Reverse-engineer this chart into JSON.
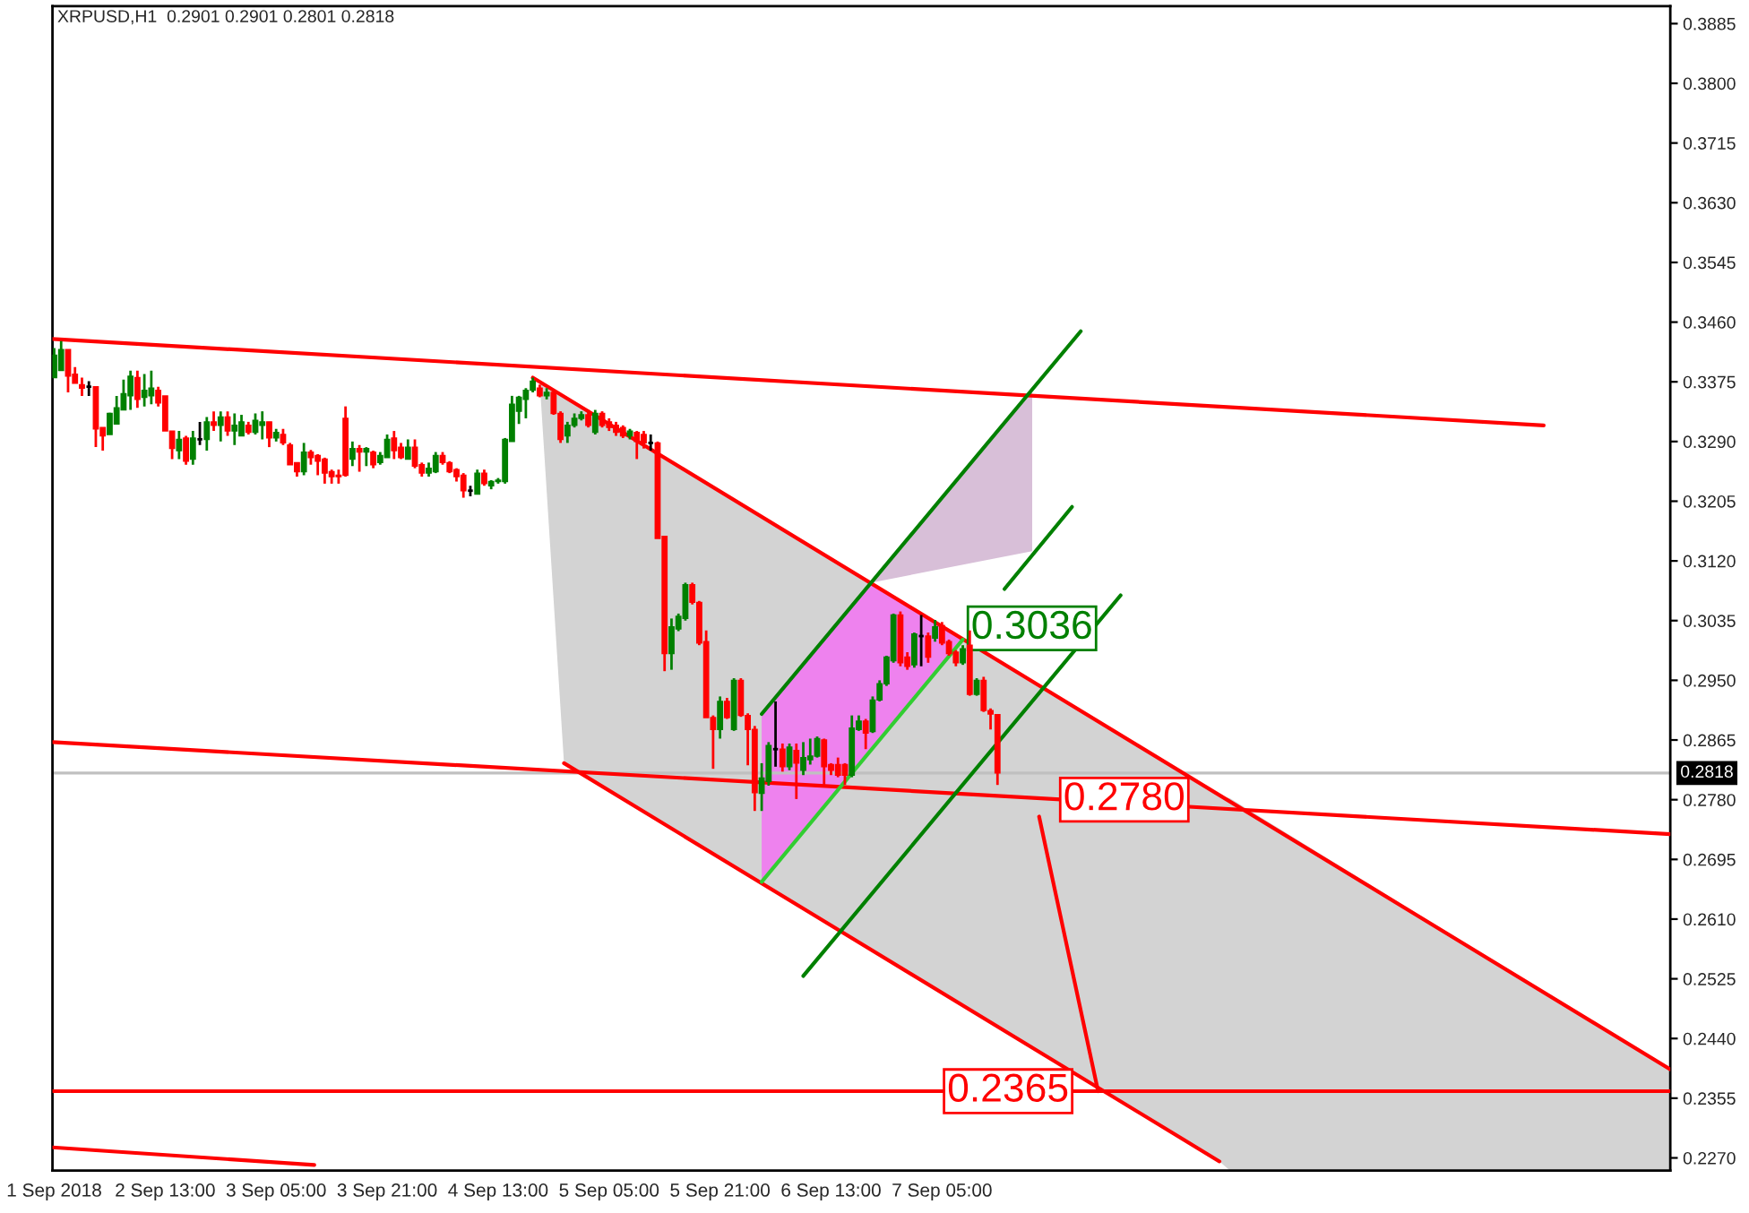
{
  "chart_data": {
    "type": "candlestick",
    "title": "XRPUSD,H1  0.2901 0.2901 0.2801 0.2818",
    "xlim": [
      "2018-09-01T20:45",
      "2018-09-11T14:00"
    ],
    "ylim": [
      0.2252,
      0.391
    ],
    "xticks": [
      {
        "value": "2018-09-01T21:00",
        "label": "1 Sep 2018"
      },
      {
        "value": "2018-09-02T13:00",
        "label": "2 Sep 13:00"
      },
      {
        "value": "2018-09-03T05:00",
        "label": "3 Sep 05:00"
      },
      {
        "value": "2018-09-03T21:00",
        "label": "3 Sep 21:00"
      },
      {
        "value": "2018-09-04T13:00",
        "label": "4 Sep 13:00"
      },
      {
        "value": "2018-09-05T05:00",
        "label": "5 Sep 05:00"
      },
      {
        "value": "2018-09-05T21:00",
        "label": "5 Sep 21:00"
      },
      {
        "value": "2018-09-06T13:00",
        "label": "6 Sep 13:00"
      },
      {
        "value": "2018-09-07T05:00",
        "label": "7 Sep 05:00"
      }
    ],
    "yticks": [
      {
        "value": 0.227,
        "label": "0.2270"
      },
      {
        "value": 0.2355,
        "label": "0.2355"
      },
      {
        "value": 0.244,
        "label": "0.2440"
      },
      {
        "value": 0.2525,
        "label": "0.2525"
      },
      {
        "value": 0.261,
        "label": "0.2610"
      },
      {
        "value": 0.2695,
        "label": "0.2695"
      },
      {
        "value": 0.278,
        "label": "0.2780"
      },
      {
        "value": 0.2865,
        "label": "0.2865"
      },
      {
        "value": 0.295,
        "label": "0.2950"
      },
      {
        "value": 0.3035,
        "label": "0.3035"
      },
      {
        "value": 0.312,
        "label": "0.3120"
      },
      {
        "value": 0.3205,
        "label": "0.3205"
      },
      {
        "value": 0.329,
        "label": "0.3290"
      },
      {
        "value": 0.3375,
        "label": "0.3375"
      },
      {
        "value": 0.346,
        "label": "0.3460"
      },
      {
        "value": 0.3545,
        "label": "0.3545"
      },
      {
        "value": 0.363,
        "label": "0.3630"
      },
      {
        "value": 0.3715,
        "label": "0.3715"
      },
      {
        "value": 0.38,
        "label": "0.3800"
      },
      {
        "value": 0.3885,
        "label": "0.3885"
      }
    ],
    "grid": false,
    "colors": [
      "#008000",
      "#008000",
      "#ff0000",
      "#ff0000",
      "#ff0000",
      "#000000",
      "#ff0000",
      "#ff0000",
      "#008000",
      "#008000",
      "#008000",
      "#008000",
      "#ff0000",
      "#008000",
      "#008000",
      "#ff0000",
      "#ff0000",
      "#ff0000",
      "#008000",
      "#ff0000",
      "#008000",
      "#000000",
      "#008000",
      "#ff0000",
      "#008000",
      "#ff0000",
      "#008000",
      "#008000",
      "#ff0000",
      "#008000",
      "#008000",
      "#ff0000",
      "#008000",
      "#ff0000",
      "#ff0000",
      "#ff0000",
      "#008000",
      "#ff0000",
      "#ff0000",
      "#ff0000",
      "#ff0000",
      "#ff0000",
      "#ff0000",
      "#008000",
      "#ff0000",
      "#008000",
      "#ff0000",
      "#008000",
      "#008000",
      "#ff0000",
      "#ff0000",
      "#008000",
      "#ff0000",
      "#ff0000",
      "#008000",
      "#008000",
      "#ff0000",
      "#ff0000",
      "#ff0000",
      "#ff0000",
      "#000000",
      "#008000",
      "#ff0000",
      "#008000",
      "#008000",
      "#008000",
      "#008000",
      "#008000",
      "#008000",
      "#008000",
      "#ff0000",
      "#008000",
      "#ff0000",
      "#ff0000",
      "#008000",
      "#008000",
      "#008000",
      "#ff0000",
      "#008000",
      "#ff0000",
      "#ff0000",
      "#ff0000",
      "#ff0000",
      "#008000",
      "#ff0000",
      "#ff0000",
      "#000000",
      "#ff0000",
      "#ff0000",
      "#008000",
      "#008000",
      "#008000",
      "#ff0000",
      "#ff0000",
      "#ff0000",
      "#ff0000",
      "#008000",
      "#ff0000",
      "#008000",
      "#ff0000",
      "#ff0000",
      "#ff0000",
      "#008000",
      "#008000",
      "#000000",
      "#ff0000",
      "#008000",
      "#ff0000",
      "#008000",
      "#008000",
      "#008000",
      "#ff0000",
      "#ff0000",
      "#ff0000",
      "#ff0000",
      "#008000",
      "#008000",
      "#ff0000",
      "#008000",
      "#008000",
      "#008000",
      "#008000",
      "#ff0000",
      "#ff0000",
      "#008000",
      "#000000",
      "#ff0000",
      "#008000",
      "#ff0000",
      "#ff0000",
      "#ff0000",
      "#008000",
      "#ff0000",
      "#008000",
      "#ff0000",
      "#ff0000",
      "#ff0000"
    ],
    "x": [
      "2018-09-01T21:00",
      "2018-09-01T22:00",
      "2018-09-01T23:00",
      "2018-09-02T00:00",
      "2018-09-02T01:00",
      "2018-09-02T02:00",
      "2018-09-02T03:00",
      "2018-09-02T04:00",
      "2018-09-02T05:00",
      "2018-09-02T06:00",
      "2018-09-02T07:00",
      "2018-09-02T08:00",
      "2018-09-02T09:00",
      "2018-09-02T10:00",
      "2018-09-02T11:00",
      "2018-09-02T12:00",
      "2018-09-02T13:00",
      "2018-09-02T14:00",
      "2018-09-02T15:00",
      "2018-09-02T16:00",
      "2018-09-02T17:00",
      "2018-09-02T18:00",
      "2018-09-02T19:00",
      "2018-09-02T20:00",
      "2018-09-02T21:00",
      "2018-09-02T22:00",
      "2018-09-02T23:00",
      "2018-09-03T00:00",
      "2018-09-03T01:00",
      "2018-09-03T02:00",
      "2018-09-03T03:00",
      "2018-09-03T04:00",
      "2018-09-03T05:00",
      "2018-09-03T06:00",
      "2018-09-03T07:00",
      "2018-09-03T08:00",
      "2018-09-03T09:00",
      "2018-09-03T10:00",
      "2018-09-03T11:00",
      "2018-09-03T12:00",
      "2018-09-03T13:00",
      "2018-09-03T14:00",
      "2018-09-03T15:00",
      "2018-09-03T16:00",
      "2018-09-03T17:00",
      "2018-09-03T18:00",
      "2018-09-03T19:00",
      "2018-09-03T20:00",
      "2018-09-03T21:00",
      "2018-09-03T22:00",
      "2018-09-03T23:00",
      "2018-09-04T00:00",
      "2018-09-04T01:00",
      "2018-09-04T02:00",
      "2018-09-04T03:00",
      "2018-09-04T04:00",
      "2018-09-04T05:00",
      "2018-09-04T06:00",
      "2018-09-04T07:00",
      "2018-09-04T08:00",
      "2018-09-04T09:00",
      "2018-09-04T10:00",
      "2018-09-04T11:00",
      "2018-09-04T12:00",
      "2018-09-04T13:00",
      "2018-09-04T14:00",
      "2018-09-04T15:00",
      "2018-09-04T16:00",
      "2018-09-04T17:00",
      "2018-09-04T18:00",
      "2018-09-04T19:00",
      "2018-09-04T20:00",
      "2018-09-04T21:00",
      "2018-09-04T22:00",
      "2018-09-04T23:00",
      "2018-09-05T00:00",
      "2018-09-05T01:00",
      "2018-09-05T02:00",
      "2018-09-05T03:00",
      "2018-09-05T04:00",
      "2018-09-05T05:00",
      "2018-09-05T06:00",
      "2018-09-05T07:00",
      "2018-09-05T08:00",
      "2018-09-05T09:00",
      "2018-09-05T10:00",
      "2018-09-05T11:00",
      "2018-09-05T12:00",
      "2018-09-05T13:00",
      "2018-09-05T14:00",
      "2018-09-05T15:00",
      "2018-09-05T16:00",
      "2018-09-05T17:00",
      "2018-09-05T18:00",
      "2018-09-05T19:00",
      "2018-09-05T20:00",
      "2018-09-05T21:00",
      "2018-09-05T22:00",
      "2018-09-05T23:00",
      "2018-09-06T00:00",
      "2018-09-06T01:00",
      "2018-09-06T02:00",
      "2018-09-06T03:00",
      "2018-09-06T04:00",
      "2018-09-06T05:00",
      "2018-09-06T06:00",
      "2018-09-06T07:00",
      "2018-09-06T08:00",
      "2018-09-06T09:00",
      "2018-09-06T10:00",
      "2018-09-06T11:00",
      "2018-09-06T12:00",
      "2018-09-06T13:00",
      "2018-09-06T14:00",
      "2018-09-06T15:00",
      "2018-09-06T16:00",
      "2018-09-06T17:00",
      "2018-09-06T18:00",
      "2018-09-06T19:00",
      "2018-09-06T20:00",
      "2018-09-06T21:00",
      "2018-09-06T22:00",
      "2018-09-06T23:00",
      "2018-09-07T00:00",
      "2018-09-07T01:00",
      "2018-09-07T02:00",
      "2018-09-07T03:00",
      "2018-09-07T04:00",
      "2018-09-07T05:00",
      "2018-09-07T06:00",
      "2018-09-07T07:00",
      "2018-09-07T08:00",
      "2018-09-07T09:00",
      "2018-09-07T10:00",
      "2018-09-07T11:00",
      "2018-09-07T12:00",
      "2018-09-07T13:00"
    ],
    "ohlc": [
      [
        0.3381,
        0.3423,
        0.3381,
        0.3413
      ],
      [
        0.3391,
        0.3433,
        0.3391,
        0.3421
      ],
      [
        0.3421,
        0.3421,
        0.336,
        0.3383
      ],
      [
        0.3386,
        0.3396,
        0.3373,
        0.3373
      ],
      [
        0.3371,
        0.3381,
        0.3355,
        0.3366
      ],
      [
        0.3368,
        0.3376,
        0.3355,
        0.3368
      ],
      [
        0.3368,
        0.3368,
        0.3282,
        0.3308
      ],
      [
        0.331,
        0.331,
        0.3277,
        0.3298
      ],
      [
        0.33,
        0.3331,
        0.33,
        0.333
      ],
      [
        0.3315,
        0.3355,
        0.3315,
        0.3338
      ],
      [
        0.3335,
        0.3378,
        0.3335,
        0.3358
      ],
      [
        0.3355,
        0.3391,
        0.3335,
        0.3383
      ],
      [
        0.3381,
        0.3391,
        0.3338,
        0.335
      ],
      [
        0.3353,
        0.3386,
        0.334,
        0.3363
      ],
      [
        0.3355,
        0.3391,
        0.3343,
        0.3366
      ],
      [
        0.3363,
        0.3368,
        0.334,
        0.3345
      ],
      [
        0.3355,
        0.3355,
        0.3305,
        0.3305
      ],
      [
        0.3305,
        0.3305,
        0.3265,
        0.328
      ],
      [
        0.3277,
        0.3305,
        0.3265,
        0.3293
      ],
      [
        0.3295,
        0.3298,
        0.3257,
        0.3262
      ],
      [
        0.3265,
        0.3305,
        0.3257,
        0.3295
      ],
      [
        0.3293,
        0.3318,
        0.3285,
        0.3293
      ],
      [
        0.3293,
        0.3325,
        0.3277,
        0.3318
      ],
      [
        0.3318,
        0.3333,
        0.3305,
        0.3313
      ],
      [
        0.3313,
        0.3333,
        0.329,
        0.3325
      ],
      [
        0.3325,
        0.3333,
        0.3298,
        0.3305
      ],
      [
        0.3305,
        0.333,
        0.3285,
        0.3313
      ],
      [
        0.3298,
        0.3328,
        0.3298,
        0.3318
      ],
      [
        0.3313,
        0.3318,
        0.33,
        0.3303
      ],
      [
        0.3303,
        0.333,
        0.33,
        0.332
      ],
      [
        0.3313,
        0.3333,
        0.3293,
        0.3318
      ],
      [
        0.3318,
        0.3318,
        0.3282,
        0.3295
      ],
      [
        0.3295,
        0.3308,
        0.329,
        0.3303
      ],
      [
        0.33,
        0.3308,
        0.3285,
        0.3288
      ],
      [
        0.3285,
        0.3288,
        0.3257,
        0.3257
      ],
      [
        0.326,
        0.326,
        0.324,
        0.3247
      ],
      [
        0.3247,
        0.3288,
        0.3242,
        0.3275
      ],
      [
        0.3275,
        0.3278,
        0.3257,
        0.3267
      ],
      [
        0.327,
        0.3272,
        0.3242,
        0.3262
      ],
      [
        0.3265,
        0.3267,
        0.323,
        0.3245
      ],
      [
        0.3247,
        0.325,
        0.323,
        0.324
      ],
      [
        0.3242,
        0.325,
        0.323,
        0.324
      ],
      [
        0.3323,
        0.334,
        0.324,
        0.3242
      ],
      [
        0.3265,
        0.329,
        0.3255,
        0.328
      ],
      [
        0.328,
        0.3285,
        0.3247,
        0.3275
      ],
      [
        0.3275,
        0.3282,
        0.3255,
        0.328
      ],
      [
        0.3275,
        0.3277,
        0.3252,
        0.3257
      ],
      [
        0.326,
        0.3275,
        0.3257,
        0.327
      ],
      [
        0.3267,
        0.33,
        0.3267,
        0.3293
      ],
      [
        0.3295,
        0.3305,
        0.3265,
        0.3277
      ],
      [
        0.3282,
        0.3288,
        0.3265,
        0.3267
      ],
      [
        0.3265,
        0.3293,
        0.3265,
        0.3282
      ],
      [
        0.3282,
        0.3293,
        0.3252,
        0.3255
      ],
      [
        0.3257,
        0.326,
        0.324,
        0.3245
      ],
      [
        0.3245,
        0.326,
        0.324,
        0.3252
      ],
      [
        0.3247,
        0.3275,
        0.3245,
        0.327
      ],
      [
        0.327,
        0.3275,
        0.3257,
        0.326
      ],
      [
        0.326,
        0.3262,
        0.3245,
        0.3247
      ],
      [
        0.325,
        0.3252,
        0.3233,
        0.324
      ],
      [
        0.3242,
        0.3245,
        0.321,
        0.322
      ],
      [
        0.322,
        0.3227,
        0.3212,
        0.322
      ],
      [
        0.3215,
        0.325,
        0.3215,
        0.3245
      ],
      [
        0.3245,
        0.325,
        0.3227,
        0.323
      ],
      [
        0.3227,
        0.3235,
        0.3222,
        0.3233
      ],
      [
        0.3233,
        0.3238,
        0.323,
        0.3235
      ],
      [
        0.3233,
        0.3295,
        0.323,
        0.3293
      ],
      [
        0.329,
        0.3355,
        0.329,
        0.3343
      ],
      [
        0.3333,
        0.3355,
        0.3315,
        0.3353
      ],
      [
        0.335,
        0.3366,
        0.3323,
        0.3363
      ],
      [
        0.3363,
        0.3381,
        0.336,
        0.3376
      ],
      [
        0.3366,
        0.3371,
        0.3353,
        0.3355
      ],
      [
        0.3355,
        0.3366,
        0.335,
        0.336
      ],
      [
        0.336,
        0.3363,
        0.3328,
        0.333
      ],
      [
        0.333,
        0.3333,
        0.3288,
        0.3293
      ],
      [
        0.3298,
        0.3318,
        0.3288,
        0.3313
      ],
      [
        0.3313,
        0.333,
        0.331,
        0.3323
      ],
      [
        0.3323,
        0.3333,
        0.332,
        0.3328
      ],
      [
        0.3328,
        0.3335,
        0.331,
        0.3313
      ],
      [
        0.3303,
        0.3335,
        0.33,
        0.333
      ],
      [
        0.333,
        0.3333,
        0.331,
        0.3313
      ],
      [
        0.3318,
        0.3323,
        0.3305,
        0.331
      ],
      [
        0.3313,
        0.3318,
        0.3298,
        0.3303
      ],
      [
        0.331,
        0.3313,
        0.3295,
        0.3298
      ],
      [
        0.3298,
        0.3308,
        0.3293,
        0.3305
      ],
      [
        0.3303,
        0.3305,
        0.3265,
        0.329
      ],
      [
        0.33,
        0.3305,
        0.328,
        0.3288
      ],
      [
        0.3288,
        0.33,
        0.3277,
        0.3288
      ],
      [
        0.3288,
        0.329,
        0.3152,
        0.3152
      ],
      [
        0.3155,
        0.3155,
        0.2963,
        0.2988
      ],
      [
        0.2988,
        0.3038,
        0.2965,
        0.3026
      ],
      [
        0.3023,
        0.3045,
        0.302,
        0.3041
      ],
      [
        0.3038,
        0.3089,
        0.3035,
        0.3086
      ],
      [
        0.3086,
        0.3089,
        0.3058,
        0.3061
      ],
      [
        0.3061,
        0.3063,
        0.3,
        0.3003
      ],
      [
        0.3005,
        0.3021,
        0.2897,
        0.2897
      ],
      [
        0.2897,
        0.29,
        0.2824,
        0.288
      ],
      [
        0.288,
        0.2927,
        0.2867,
        0.292
      ],
      [
        0.292,
        0.2925,
        0.2895,
        0.2897
      ],
      [
        0.288,
        0.2953,
        0.2878,
        0.295
      ],
      [
        0.295,
        0.2953,
        0.2898,
        0.29
      ],
      [
        0.29,
        0.2903,
        0.2829,
        0.288
      ],
      [
        0.288,
        0.2885,
        0.2764,
        0.279
      ],
      [
        0.2789,
        0.2832,
        0.2764,
        0.2811
      ],
      [
        0.2806,
        0.2862,
        0.28,
        0.2857
      ],
      [
        0.2852,
        0.292,
        0.2827,
        0.2852
      ],
      [
        0.2852,
        0.286,
        0.282,
        0.2827
      ],
      [
        0.2827,
        0.286,
        0.2822,
        0.2855
      ],
      [
        0.285,
        0.286,
        0.2781,
        0.2832
      ],
      [
        0.2822,
        0.2862,
        0.2815,
        0.284
      ],
      [
        0.2837,
        0.2867,
        0.283,
        0.2842
      ],
      [
        0.2842,
        0.287,
        0.284,
        0.2867
      ],
      [
        0.2865,
        0.2867,
        0.2801,
        0.2827
      ],
      [
        0.283,
        0.2832,
        0.2815,
        0.2822
      ],
      [
        0.283,
        0.284,
        0.2812,
        0.2815
      ],
      [
        0.283,
        0.2832,
        0.2801,
        0.2815
      ],
      [
        0.2815,
        0.29,
        0.2812,
        0.2882
      ],
      [
        0.288,
        0.29,
        0.2878,
        0.2892
      ],
      [
        0.2892,
        0.2895,
        0.2852,
        0.2875
      ],
      [
        0.2877,
        0.2927,
        0.2875,
        0.2922
      ],
      [
        0.2922,
        0.295,
        0.292,
        0.2945
      ],
      [
        0.2945,
        0.2985,
        0.2942,
        0.2983
      ],
      [
        0.2978,
        0.3045,
        0.2975,
        0.3043
      ],
      [
        0.3043,
        0.3048,
        0.297,
        0.2975
      ],
      [
        0.2983,
        0.299,
        0.2965,
        0.297
      ],
      [
        0.2972,
        0.3018,
        0.2968,
        0.3016
      ],
      [
        0.3013,
        0.3043,
        0.297,
        0.3013
      ],
      [
        0.3013,
        0.3018,
        0.2975,
        0.2983
      ],
      [
        0.301,
        0.3036,
        0.3005,
        0.3026
      ],
      [
        0.3028,
        0.3033,
        0.3,
        0.3003
      ],
      [
        0.3005,
        0.3008,
        0.2985,
        0.2988
      ],
      [
        0.299,
        0.2993,
        0.297,
        0.2975
      ],
      [
        0.2975,
        0.3,
        0.2972,
        0.2995
      ],
      [
        0.3,
        0.3021,
        0.2928,
        0.293
      ],
      [
        0.293,
        0.2953,
        0.2928,
        0.295
      ],
      [
        0.295,
        0.2955,
        0.2905,
        0.2907
      ],
      [
        0.2907,
        0.291,
        0.288,
        0.2902
      ],
      [
        0.2901,
        0.2901,
        0.2801,
        0.2818
      ]
    ],
    "series": [
      {
        "type": "area",
        "color": "#d3d3d3",
        "x": [
          "2018-09-04T19:00",
          "2018-09-04T22:30",
          "2018-09-08T21:00",
          "2018-09-08T22:30",
          "2018-09-11T14:00"
        ],
        "values": [
          null,
          null,
          null,
          null,
          null
        ],
        "upper": [
          0.3375,
          0.3354,
          0.2786,
          0.2782,
          0.2396
        ],
        "lower": [
          0.3375,
          0.2832,
          0.2265,
          0.2252,
          0.2252
        ]
      },
      {
        "type": "area",
        "color": "#ee82ee",
        "x": [
          "2018-09-06T03:00",
          "2018-09-06T18:45",
          "2018-09-07T08:00"
        ],
        "values": [
          null,
          null,
          null
        ],
        "upper": [
          0.2902,
          0.3089,
          0.3008
        ],
        "lower": [
          0.2663,
          0.2851,
          0.3008
        ]
      },
      {
        "type": "area",
        "color": "#d8bfd8",
        "x": [
          "2018-09-06T18:45",
          "2018-09-07T18:00"
        ],
        "values": [
          null,
          null
        ],
        "upper": [
          0.3089,
          0.3361
        ],
        "lower": [
          0.3089,
          0.3134
        ]
      },
      {
        "type": "line",
        "color": "#ff0000",
        "x": [
          "2018-09-01T20:45",
          "2018-09-10T19:45"
        ],
        "values": [
          0.3436,
          0.3313
        ]
      },
      {
        "type": "line",
        "color": "#ff0000",
        "x": [
          "2018-09-01T20:45",
          "2018-09-11T14:00"
        ],
        "values": [
          0.2862,
          0.2731
        ]
      },
      {
        "type": "line",
        "color": "#ff0000",
        "x": [
          "2018-09-01T20:45",
          "2018-09-03T10:30"
        ],
        "values": [
          0.2285,
          0.226
        ]
      },
      {
        "type": "line",
        "color": "#ff0000",
        "x": [
          "2018-09-04T18:00",
          "2018-09-11T14:00"
        ],
        "values": [
          0.3381,
          0.2396
        ]
      },
      {
        "type": "line",
        "color": "#ff0000",
        "x": [
          "2018-09-04T22:30",
          "2018-09-08T21:00"
        ],
        "values": [
          0.2832,
          0.2265
        ]
      },
      {
        "type": "line",
        "color": "#ff0000",
        "x": [
          "2018-09-07T19:00",
          "2018-09-08T03:30"
        ],
        "values": [
          0.2756,
          0.2365
        ]
      },
      {
        "type": "line",
        "color": "#008000",
        "x": [
          "2018-09-06T03:00",
          "2018-09-08T01:00"
        ],
        "values": [
          0.2902,
          0.3447
        ]
      },
      {
        "type": "line",
        "color": "#32cd32",
        "x": [
          "2018-09-06T03:00",
          "2018-09-07T08:00"
        ],
        "values": [
          0.2663,
          0.3008
        ]
      },
      {
        "type": "line",
        "color": "#008000",
        "x": [
          "2018-09-07T14:00",
          "2018-09-07T23:45"
        ],
        "values": [
          0.308,
          0.3197
        ]
      },
      {
        "type": "line",
        "color": "#ff0000",
        "x": [
          "2018-09-01T20:45",
          "2018-09-11T14:00"
        ],
        "values": [
          0.2365,
          0.2365
        ]
      },
      {
        "type": "line",
        "color": "#008000",
        "x": [
          "2018-09-06T09:00",
          "2018-09-08T06:45"
        ],
        "values": [
          0.2529,
          0.3071
        ]
      }
    ],
    "ref_lines": [
      {
        "axis": "y",
        "value": 0.2818,
        "color": "#c0c0c0",
        "label": "0.2818"
      }
    ],
    "annotations": [
      {
        "text": "0.3036",
        "x": "2018-09-08T02:45",
        "y": 0.3024
      },
      {
        "text": "0.2780",
        "x": "2018-09-07T22:30",
        "y": 0.278
      },
      {
        "text": "0.2365",
        "x": "2018-09-07T05:45",
        "y": 0.2365
      }
    ]
  }
}
